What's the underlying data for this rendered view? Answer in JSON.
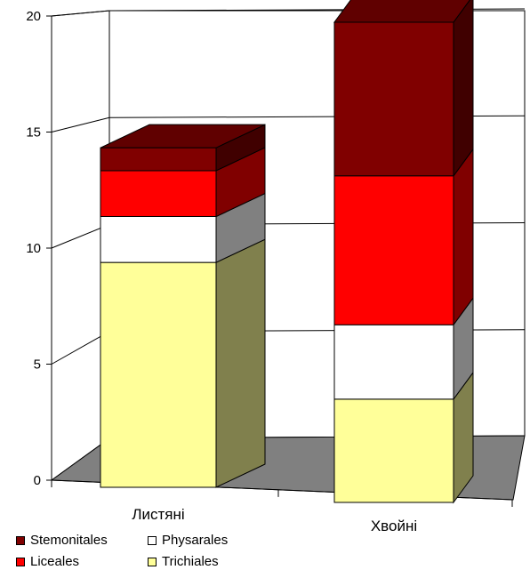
{
  "chart_data": {
    "type": "bar",
    "stacked": true,
    "three_d": true,
    "categories": [
      "Листяні",
      "Хвойні"
    ],
    "series": [
      {
        "name": "Trichiales",
        "values": [
          9.8,
          4.3
        ],
        "color": "#ffff99"
      },
      {
        "name": "Physarales",
        "values": [
          2.0,
          3.1
        ],
        "color": "#ffffff"
      },
      {
        "name": "Liceales",
        "values": [
          2.0,
          6.2
        ],
        "color": "#ff0000"
      },
      {
        "name": "Stemonitales",
        "values": [
          1.0,
          6.4
        ],
        "color": "#800000"
      }
    ],
    "ylim": [
      0,
      20
    ],
    "yticks": [
      "0",
      "5",
      "10",
      "15",
      "20"
    ],
    "grid": true,
    "legend_position": "bottom-left"
  },
  "legend": {
    "items": [
      {
        "label": "Stemonitales",
        "color": "#800000"
      },
      {
        "label": "Physarales",
        "color": "#ffffff"
      },
      {
        "label": "Liceales",
        "color": "#ff0000"
      },
      {
        "label": "Trichiales",
        "color": "#ffff99"
      }
    ]
  }
}
